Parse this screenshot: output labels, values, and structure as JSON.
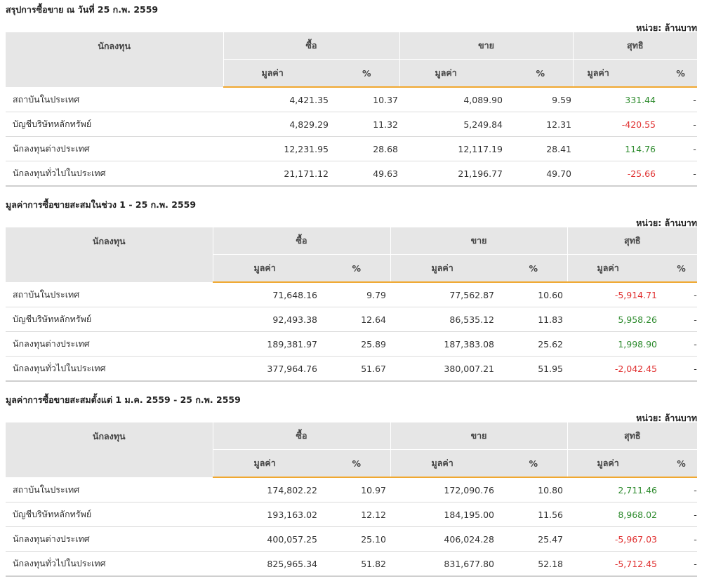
{
  "unit_label": "หน่วย: ล้านบาท",
  "headers": {
    "investor": "นักลงทุน",
    "buy": "ซื้อ",
    "sell": "ขาย",
    "net": "สุทธิ",
    "value": "มูลค่า",
    "pct": "%"
  },
  "colors": {
    "positive": "#2e8b2e",
    "negative": "#e03030",
    "accent": "#f0a830"
  },
  "sections": [
    {
      "title": "สรุปการซื้อขาย ณ วันที่ 25 ก.พ. 2559",
      "rows": [
        {
          "investor": "สถาบันในประเทศ",
          "buy": "4,421.35",
          "buy_pct": "10.37",
          "sell": "4,089.90",
          "sell_pct": "9.59",
          "net": "331.44",
          "net_sign": "pos",
          "net_pct": "-"
        },
        {
          "investor": "บัญชีบริษัทหลักทรัพย์",
          "buy": "4,829.29",
          "buy_pct": "11.32",
          "sell": "5,249.84",
          "sell_pct": "12.31",
          "net": "-420.55",
          "net_sign": "neg",
          "net_pct": "-"
        },
        {
          "investor": "นักลงทุนต่างประเทศ",
          "buy": "12,231.95",
          "buy_pct": "28.68",
          "sell": "12,117.19",
          "sell_pct": "28.41",
          "net": "114.76",
          "net_sign": "pos",
          "net_pct": "-"
        },
        {
          "investor": "นักลงทุนทั่วไปในประเทศ",
          "buy": "21,171.12",
          "buy_pct": "49.63",
          "sell": "21,196.77",
          "sell_pct": "49.70",
          "net": "-25.66",
          "net_sign": "neg",
          "net_pct": "-"
        }
      ]
    },
    {
      "title": "มูลค่าการซื้อขายสะสมในช่วง 1 - 25 ก.พ. 2559",
      "rows": [
        {
          "investor": "สถาบันในประเทศ",
          "buy": "71,648.16",
          "buy_pct": "9.79",
          "sell": "77,562.87",
          "sell_pct": "10.60",
          "net": "-5,914.71",
          "net_sign": "neg",
          "net_pct": "-"
        },
        {
          "investor": "บัญชีบริษัทหลักทรัพย์",
          "buy": "92,493.38",
          "buy_pct": "12.64",
          "sell": "86,535.12",
          "sell_pct": "11.83",
          "net": "5,958.26",
          "net_sign": "pos",
          "net_pct": "-"
        },
        {
          "investor": "นักลงทุนต่างประเทศ",
          "buy": "189,381.97",
          "buy_pct": "25.89",
          "sell": "187,383.08",
          "sell_pct": "25.62",
          "net": "1,998.90",
          "net_sign": "pos",
          "net_pct": "-"
        },
        {
          "investor": "นักลงทุนทั่วไปในประเทศ",
          "buy": "377,964.76",
          "buy_pct": "51.67",
          "sell": "380,007.21",
          "sell_pct": "51.95",
          "net": "-2,042.45",
          "net_sign": "neg",
          "net_pct": "-"
        }
      ]
    },
    {
      "title": "มูลค่าการซื้อขายสะสมตั้งแต่ 1 ม.ค. 2559 - 25 ก.พ. 2559",
      "rows": [
        {
          "investor": "สถาบันในประเทศ",
          "buy": "174,802.22",
          "buy_pct": "10.97",
          "sell": "172,090.76",
          "sell_pct": "10.80",
          "net": "2,711.46",
          "net_sign": "pos",
          "net_pct": "-"
        },
        {
          "investor": "บัญชีบริษัทหลักทรัพย์",
          "buy": "193,163.02",
          "buy_pct": "12.12",
          "sell": "184,195.00",
          "sell_pct": "11.56",
          "net": "8,968.02",
          "net_sign": "pos",
          "net_pct": "-"
        },
        {
          "investor": "นักลงทุนต่างประเทศ",
          "buy": "400,057.25",
          "buy_pct": "25.10",
          "sell": "406,024.28",
          "sell_pct": "25.47",
          "net": "-5,967.03",
          "net_sign": "neg",
          "net_pct": "-"
        },
        {
          "investor": "นักลงทุนทั่วไปในประเทศ",
          "buy": "825,965.34",
          "buy_pct": "51.82",
          "sell": "831,677.80",
          "sell_pct": "52.18",
          "net": "-5,712.45",
          "net_sign": "neg",
          "net_pct": "-"
        }
      ]
    }
  ]
}
